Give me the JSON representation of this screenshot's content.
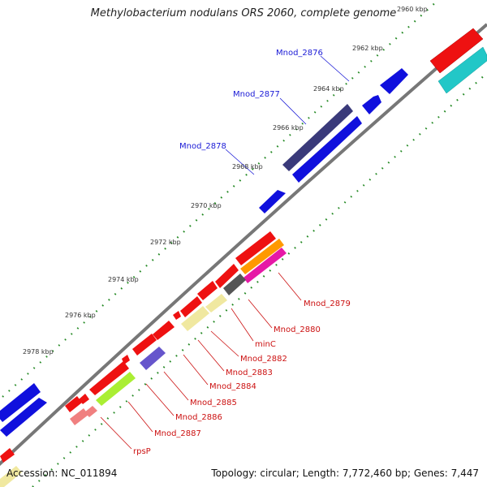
{
  "title": "Methylobacterium nodulans ORS 2060, complete genome",
  "footer": {
    "accession": "Accession: NC_011894",
    "summary": "Topology: circular; Length: 7,772,460 bp; Genes: 7,447"
  },
  "ticks": [
    "2960 kbp",
    "2962 kbp",
    "2964 kbp",
    "2966 kbp",
    "2968 kbp",
    "2970 kbp",
    "2972 kbp",
    "2974 kbp",
    "2976 kbp",
    "2978 kbp"
  ],
  "gene_labels_top": [
    "Mnod_2876",
    "Mnod_2877",
    "Mnod_2878"
  ],
  "gene_labels_bottom": [
    "Mnod_2879",
    "Mnod_2880",
    "minC",
    "Mnod_2882",
    "Mnod_2883",
    "Mnod_2884",
    "Mnod_2885",
    "Mnod_2886",
    "Mnod_2887",
    "rpsP"
  ],
  "colors": {
    "blue_gene": "#1010dd",
    "red_gene": "#ee1111",
    "navy_gene": "#3a3a7a",
    "cyan_gene": "#22c7c7",
    "yellow_gene": "#f0e8a0",
    "green_gene": "#aaee33",
    "backbone": "#777777",
    "tick_dots": "#228822"
  }
}
